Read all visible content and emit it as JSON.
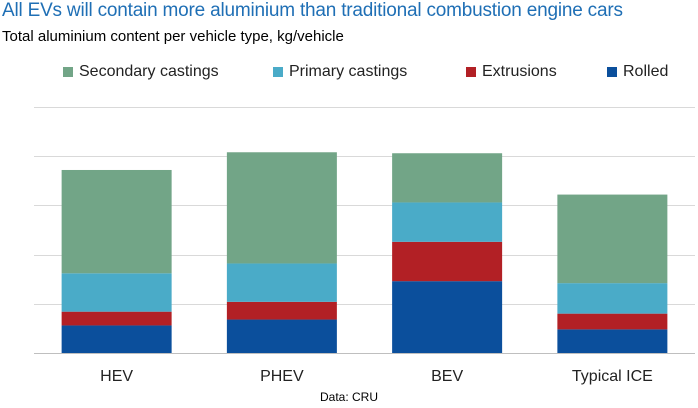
{
  "title": "All EVs will contain more aluminium than traditional combustion engine cars",
  "subtitle": "Total aluminium content per vehicle type, kg/vehicle",
  "source": "Data: CRU",
  "colors": {
    "Rolled": "#0b4f9c",
    "Extrusions": "#b22025",
    "Primary castings": "#4aabc8",
    "Secondary castings": "#72a587"
  },
  "legend": [
    "Secondary castings",
    "Primary castings",
    "Extrusions",
    "Rolled"
  ],
  "chart_data": {
    "type": "bar",
    "stacked": true,
    "categories": [
      "HEV",
      "PHEV",
      "BEV",
      "Typical ICE"
    ],
    "series": [
      {
        "name": "Rolled",
        "values": [
          28,
          34,
          73,
          24
        ]
      },
      {
        "name": "Extrusions",
        "values": [
          14,
          18,
          40,
          16
        ]
      },
      {
        "name": "Primary castings",
        "values": [
          39,
          39,
          40,
          31
        ]
      },
      {
        "name": "Secondary castings",
        "values": [
          105,
          113,
          50,
          90
        ]
      }
    ],
    "ylim": [
      0,
      250
    ],
    "grid": true,
    "legend_position": "top"
  }
}
